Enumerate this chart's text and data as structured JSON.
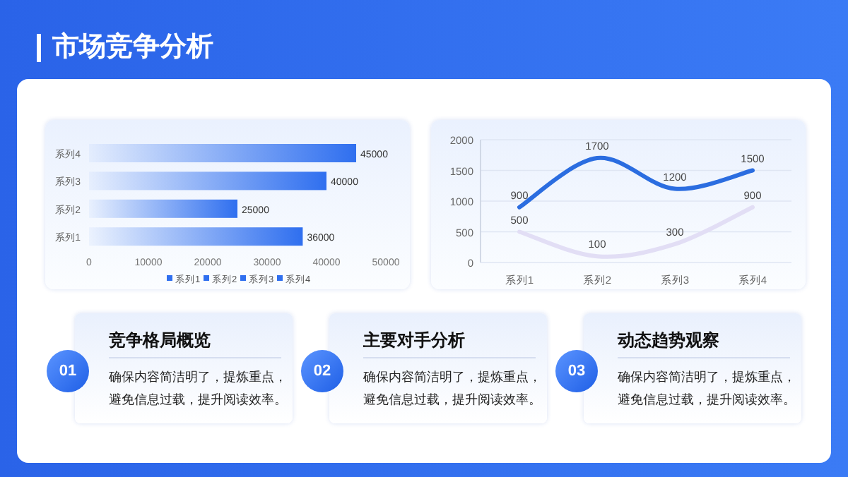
{
  "chart_data": [
    {
      "type": "other",
      "title": "市场竞争分析"
    },
    {
      "type": "bar",
      "orientation": "horizontal",
      "categories": [
        "系列4",
        "系列3",
        "系列2",
        "系列1"
      ],
      "series": [
        {
          "name": "系列1",
          "color": "#2f6fef",
          "values": [
            null,
            null,
            null,
            36000
          ]
        },
        {
          "name": "系列2",
          "color": "#2f6fef",
          "values": [
            null,
            null,
            25000,
            null
          ]
        },
        {
          "name": "系列3",
          "color": "#2f6fef",
          "values": [
            null,
            40000,
            null,
            null
          ]
        },
        {
          "name": "系列4",
          "color": "#2f6fef",
          "values": [
            45000,
            null,
            null,
            null
          ]
        }
      ],
      "xlim": [
        0,
        50000
      ],
      "xticks": [
        0,
        10000,
        20000,
        30000,
        40000,
        50000
      ],
      "data_labels": true,
      "legend": "bottom"
    },
    {
      "type": "line",
      "categories": [
        "系列1",
        "系列2",
        "系列3",
        "系列4"
      ],
      "series": [
        {
          "color": "#2b6de0",
          "values": [
            900,
            1700,
            1200,
            1500
          ]
        },
        {
          "color": "#e2def5",
          "values": [
            500,
            100,
            300,
            900
          ]
        }
      ],
      "ylim": [
        0,
        2000
      ],
      "yticks": [
        0,
        500,
        1000,
        1500,
        2000
      ],
      "grid": "y",
      "data_labels": true,
      "marker": "none"
    },
    {
      "type": "other",
      "title": "竞争格局概览",
      "annotations": [
        "01",
        "确保内容简洁明了，提炼重点，避免信息过载，提升阅读效率。"
      ]
    },
    {
      "type": "other",
      "title": "主要对手分析",
      "annotations": [
        "02",
        "确保内容简洁明了，提炼重点，避免信息过载，提升阅读效率。"
      ]
    },
    {
      "type": "other",
      "title": "动态趋势观察",
      "annotations": [
        "03",
        "确保内容简洁明了，提炼重点，避免信息过载，提升阅读效率。"
      ]
    }
  ]
}
